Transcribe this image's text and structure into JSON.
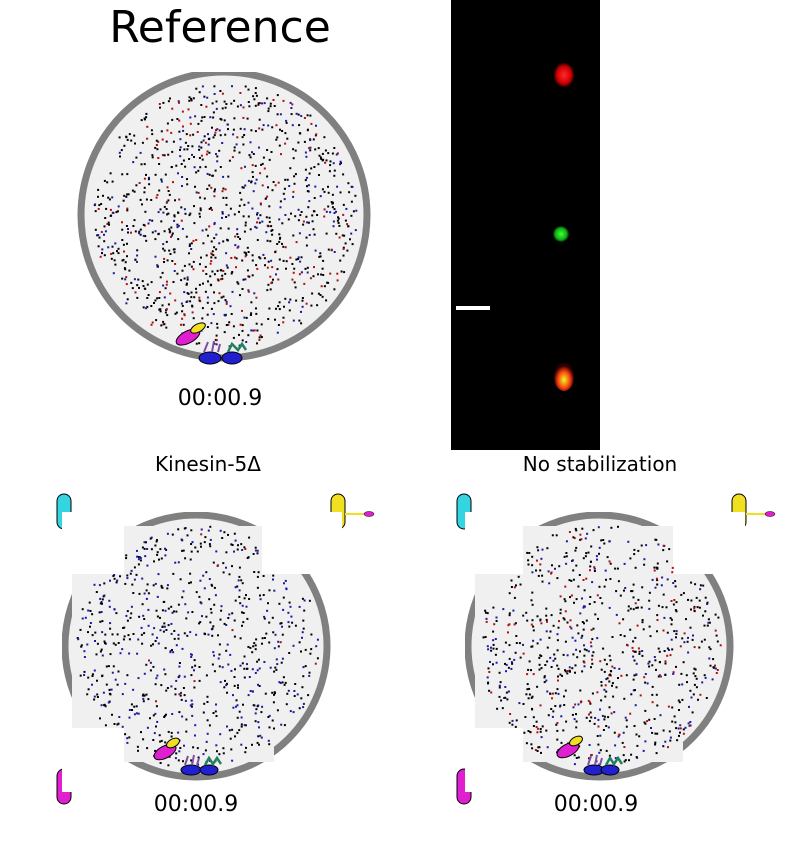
{
  "reference": {
    "title": "Reference",
    "time": "00:00.9"
  },
  "fluorescence": {
    "spots": [
      {
        "color": "red"
      },
      {
        "color": "green"
      },
      {
        "color": "red+green"
      }
    ],
    "scale_bar": true
  },
  "kinesin5_delta": {
    "title": "Kinesin-5Δ",
    "time": "00:00.9"
  },
  "no_stabilization": {
    "title": "No stabilization",
    "time": "00:00.9"
  },
  "colors": {
    "cell_fill": "#f0f0f0",
    "cell_border": "#808080",
    "dot_black": "#000000",
    "dot_blue": "#1a1aa0",
    "dot_red": "#b01010",
    "cyan": "#33d6e0",
    "yellow": "#f0e020",
    "magenta": "#e020d0",
    "blue": "#2020d0",
    "green": "#208060"
  }
}
